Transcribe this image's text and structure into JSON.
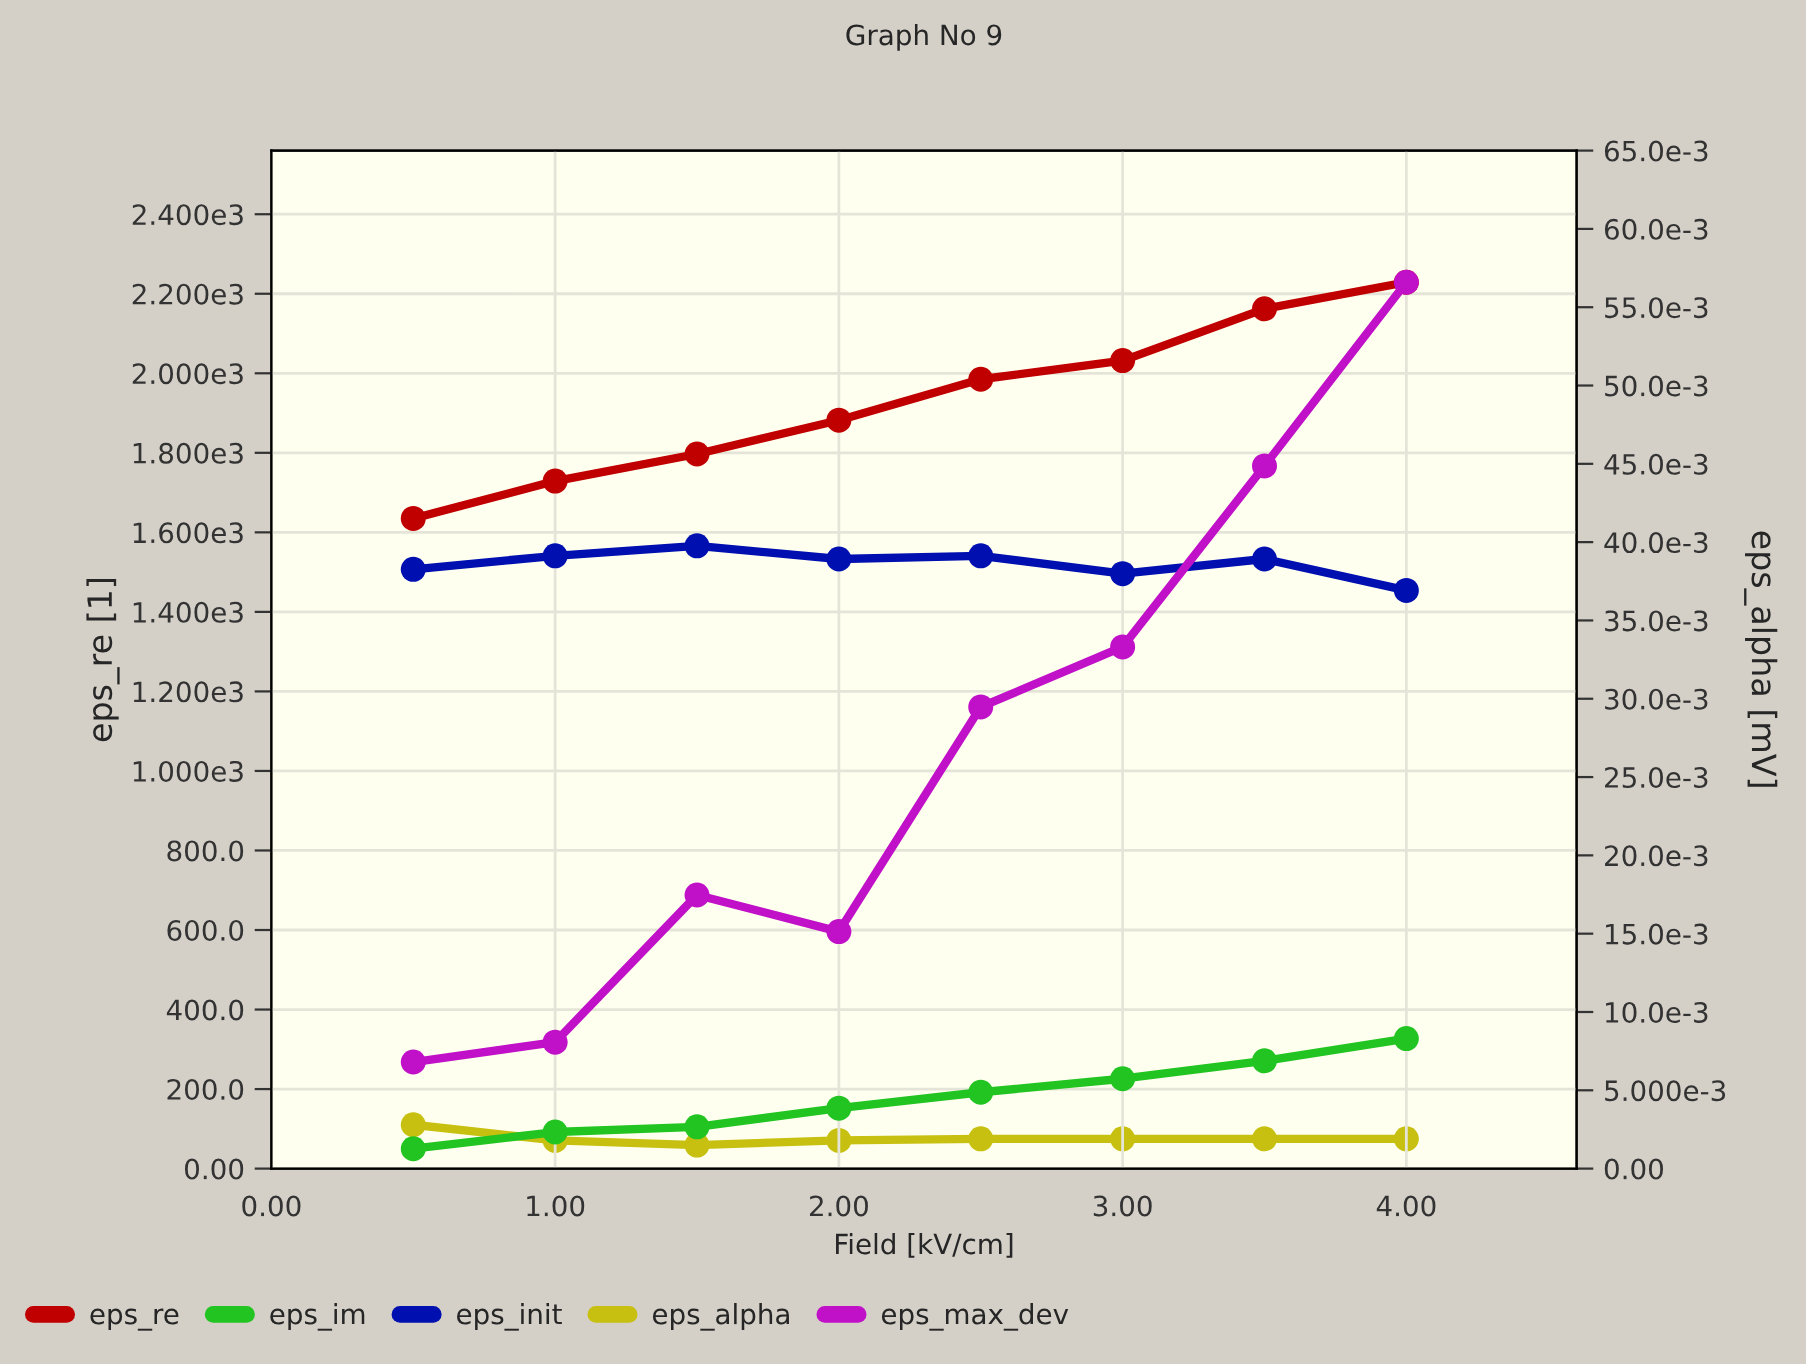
{
  "chart_data": {
    "type": "line",
    "title": "Graph No 9",
    "xlabel": "Field [kV/cm]",
    "ylabel": "eps_re [1]",
    "y2label": "eps_alpha [mV]",
    "x": [
      0.5,
      1.0,
      1.5,
      2.0,
      2.5,
      3.0,
      3.5,
      4.0
    ],
    "series": [
      {
        "name": "eps_re",
        "color": "#c00000",
        "values": [
          1635,
          1729,
          1797,
          1882,
          1985,
          2032,
          2162,
          2229
        ]
      },
      {
        "name": "eps_im",
        "color": "#22c422",
        "values": [
          50,
          92,
          105,
          152,
          192,
          226,
          271,
          327
        ]
      },
      {
        "name": "eps_init",
        "color": "#0010b0",
        "values": [
          1507,
          1541,
          1566,
          1533,
          1541,
          1496,
          1533,
          1454
        ]
      },
      {
        "name": "eps_alpha",
        "color": "#c8c010",
        "axis": "y2",
        "values": [
          0.0028,
          0.0018,
          0.0015,
          0.0018,
          0.0019,
          0.0019,
          0.0019,
          0.0019
        ]
      },
      {
        "name": "eps_max_dev",
        "color": "#c010c8",
        "values": [
          268,
          318,
          688,
          596,
          1161,
          1312,
          1767,
          2229
        ]
      }
    ],
    "xlim": [
      0,
      4.6
    ],
    "xticks": [
      {
        "value": 0,
        "label": "0.00"
      },
      {
        "value": 1,
        "label": "1.00"
      },
      {
        "value": 2,
        "label": "2.00"
      },
      {
        "value": 3,
        "label": "3.00"
      },
      {
        "value": 4,
        "label": "4.00"
      }
    ],
    "ylim": [
      0,
      2560
    ],
    "yticks": [
      {
        "value": 0,
        "label": "0.00"
      },
      {
        "value": 200,
        "label": "200.0"
      },
      {
        "value": 400,
        "label": "400.0"
      },
      {
        "value": 600,
        "label": "600.0"
      },
      {
        "value": 800,
        "label": "800.0"
      },
      {
        "value": 1000,
        "label": "1.000e3"
      },
      {
        "value": 1200,
        "label": "1.200e3"
      },
      {
        "value": 1400,
        "label": "1.400e3"
      },
      {
        "value": 1600,
        "label": "1.600e3"
      },
      {
        "value": 1800,
        "label": "1.800e3"
      },
      {
        "value": 2000,
        "label": "2.000e3"
      },
      {
        "value": 2200,
        "label": "2.200e3"
      },
      {
        "value": 2400,
        "label": "2.400e3"
      }
    ],
    "y2lim": [
      0,
      0.065
    ],
    "y2ticks": [
      {
        "value": 0,
        "label": "0.00"
      },
      {
        "value": 0.005,
        "label": "5.000e-3"
      },
      {
        "value": 0.01,
        "label": "10.0e-3"
      },
      {
        "value": 0.015,
        "label": "15.0e-3"
      },
      {
        "value": 0.02,
        "label": "20.0e-3"
      },
      {
        "value": 0.025,
        "label": "25.0e-3"
      },
      {
        "value": 0.03,
        "label": "30.0e-3"
      },
      {
        "value": 0.035,
        "label": "35.0e-3"
      },
      {
        "value": 0.04,
        "label": "40.0e-3"
      },
      {
        "value": 0.045,
        "label": "45.0e-3"
      },
      {
        "value": 0.05,
        "label": "50.0e-3"
      },
      {
        "value": 0.055,
        "label": "55.0e-3"
      },
      {
        "value": 0.06,
        "label": "60.0e-3"
      },
      {
        "value": 0.065,
        "label": "65.0e-3"
      }
    ],
    "grid": true,
    "legend": "bottom",
    "marker": "circle",
    "line_style": "solid"
  }
}
